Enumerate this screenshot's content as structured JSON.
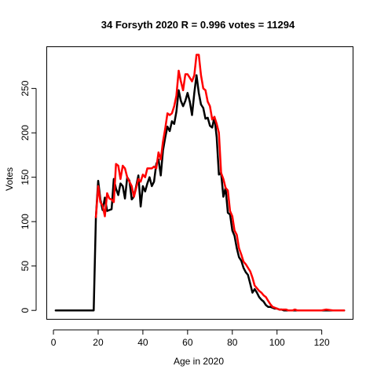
{
  "chart_data": {
    "type": "line",
    "title": "34 Forsyth 2020 R = 0.996 votes = 11294",
    "xlabel": "Age in 2020",
    "ylabel": "Votes",
    "xlim": [
      -3,
      134
    ],
    "ylim": [
      -10,
      297
    ],
    "xticks": [
      0,
      20,
      40,
      60,
      80,
      100,
      120
    ],
    "yticks": [
      0,
      50,
      100,
      150,
      200,
      250
    ],
    "grid": false,
    "legend": "none",
    "series": [
      {
        "color": "#000000",
        "x": [
          1,
          17,
          18,
          19,
          20,
          21,
          22,
          23,
          24,
          25,
          26,
          27,
          28,
          29,
          30,
          31,
          32,
          33,
          34,
          35,
          36,
          37,
          38,
          39,
          40,
          41,
          42,
          43,
          44,
          45,
          46,
          47,
          48,
          49,
          50,
          51,
          52,
          53,
          54,
          55,
          56,
          57,
          58,
          59,
          60,
          61,
          62,
          63,
          64,
          65,
          66,
          67,
          68,
          69,
          70,
          71,
          72,
          73,
          74,
          75,
          76,
          77,
          78,
          79,
          80,
          81,
          82,
          83,
          84,
          85,
          86,
          87,
          88,
          89,
          90,
          91,
          92,
          93,
          94,
          95,
          96,
          97,
          98,
          99,
          100,
          101,
          102,
          103,
          104,
          105,
          110,
          120,
          130
        ],
        "y": [
          0,
          0,
          0,
          105,
          146,
          125,
          113,
          127,
          112,
          113,
          114,
          148,
          137,
          130,
          143,
          140,
          126,
          150,
          146,
          125,
          128,
          140,
          152,
          117,
          140,
          134,
          143,
          150,
          140,
          145,
          165,
          170,
          152,
          180,
          195,
          207,
          202,
          213,
          210,
          224,
          248,
          236,
          230,
          236,
          245,
          235,
          220,
          245,
          265,
          245,
          232,
          228,
          216,
          217,
          208,
          206,
          218,
          195,
          153,
          155,
          128,
          138,
          110,
          108,
          90,
          84,
          70,
          60,
          56,
          48,
          43,
          40,
          30,
          20,
          24,
          20,
          15,
          12,
          10,
          6,
          4,
          4,
          3,
          2,
          2,
          1,
          1,
          0,
          0,
          0,
          0,
          0,
          0
        ]
      },
      {
        "color": "#ff0000",
        "x": [
          19,
          20,
          21,
          22,
          23,
          24,
          25,
          26,
          27,
          28,
          29,
          30,
          31,
          32,
          33,
          34,
          35,
          36,
          37,
          38,
          39,
          40,
          41,
          42,
          43,
          44,
          45,
          46,
          47,
          48,
          49,
          50,
          51,
          52,
          53,
          54,
          55,
          56,
          57,
          58,
          59,
          60,
          61,
          62,
          63,
          64,
          65,
          66,
          67,
          68,
          69,
          70,
          71,
          72,
          73,
          74,
          75,
          76,
          77,
          78,
          79,
          80,
          81,
          82,
          83,
          84,
          85,
          86,
          87,
          88,
          89,
          90,
          91,
          92,
          93,
          94,
          95,
          96,
          97,
          98,
          99,
          100,
          101,
          102,
          103,
          104,
          105,
          106,
          107,
          108,
          109,
          110,
          112,
          115,
          118,
          120,
          122,
          125,
          128,
          130
        ],
        "y": [
          105,
          140,
          122,
          118,
          106,
          132,
          126,
          125,
          122,
          165,
          163,
          148,
          163,
          160,
          150,
          145,
          140,
          128,
          138,
          148,
          145,
          153,
          150,
          160,
          160,
          160,
          162,
          160,
          178,
          170,
          190,
          205,
          222,
          220,
          222,
          230,
          242,
          270,
          258,
          248,
          266,
          266,
          262,
          258,
          265,
          288,
          288,
          265,
          250,
          248,
          235,
          230,
          215,
          218,
          210,
          200,
          155,
          148,
          138,
          135,
          112,
          106,
          90,
          85,
          70,
          63,
          55,
          52,
          48,
          44,
          37,
          28,
          25,
          22,
          20,
          17,
          15,
          11,
          7,
          4,
          3,
          2,
          1,
          1,
          1,
          1,
          0,
          0,
          0,
          1,
          0,
          0,
          0,
          0,
          0,
          0,
          1,
          0,
          0,
          0
        ]
      }
    ]
  }
}
